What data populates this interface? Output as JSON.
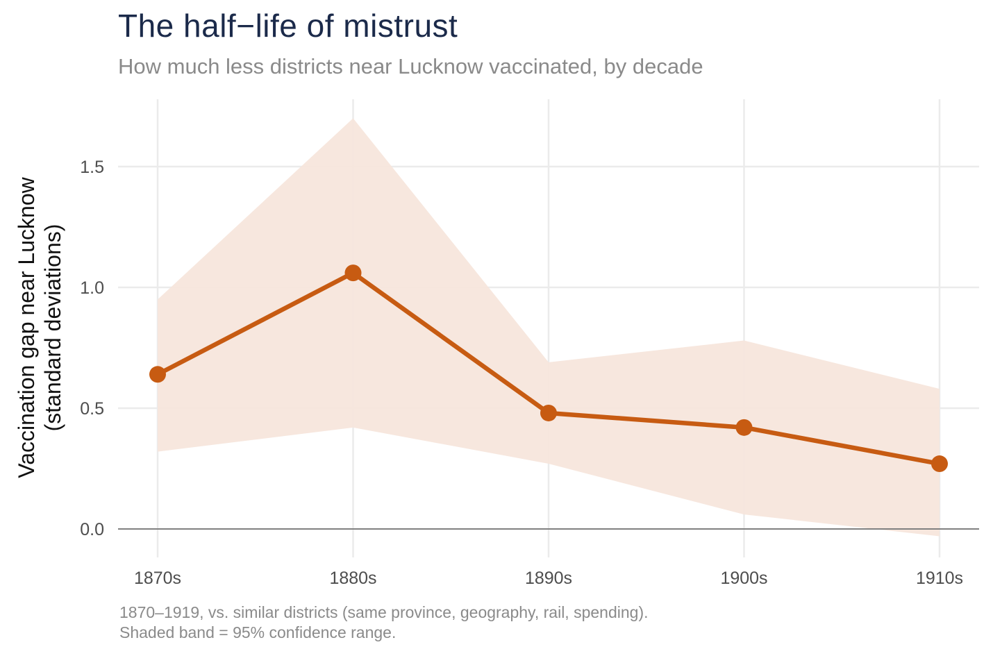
{
  "chart_data": {
    "type": "line",
    "title": "The half−life of mistrust",
    "subtitle": "How much less districts near Lucknow vaccinated, by decade",
    "xlabel": "",
    "ylabel_line1": "Vaccination gap near Lucknow",
    "ylabel_line2": "(standard deviations)",
    "categories": [
      "1870s",
      "1880s",
      "1890s",
      "1900s",
      "1910s"
    ],
    "series": [
      {
        "values": [
          0.64,
          1.06,
          0.48,
          0.42,
          0.27
        ],
        "ci_lower": [
          0.32,
          0.42,
          0.27,
          0.06,
          -0.03
        ],
        "ci_upper": [
          0.95,
          1.7,
          0.69,
          0.78,
          0.58
        ]
      }
    ],
    "ylim": [
      -0.08,
      1.78
    ],
    "yticks": [
      0.0,
      0.5,
      1.0,
      1.5
    ],
    "ytick_labels": [
      "0.0",
      "0.5",
      "1.0",
      "1.5"
    ],
    "grid": true,
    "legend": "none",
    "caption_line1": "1870–1919, vs. similar districts (same province, geography, rail, spending).",
    "caption_line2": "Shaded band = 95% confidence range.",
    "colors": {
      "line": "#c75b12",
      "band": "#f6e5db",
      "grid": "#ebebeb",
      "zero_line": "#808080"
    }
  }
}
